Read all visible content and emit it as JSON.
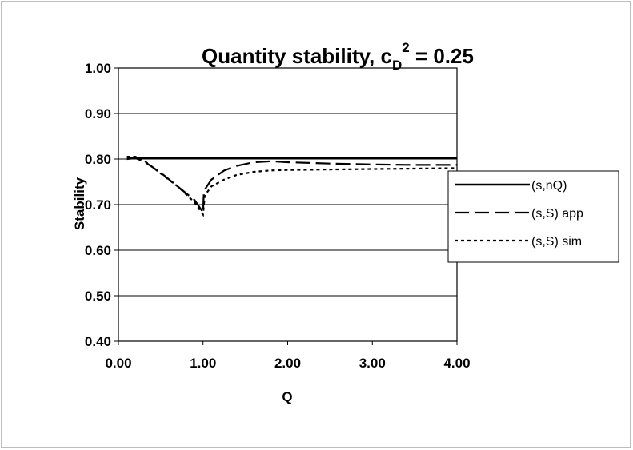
{
  "chart_data": {
    "type": "line",
    "title": "Quantity stability, c",
    "title_sub": "D",
    "title_sup": "2",
    "title_tail": " = 0.25",
    "xlabel": "Q",
    "ylabel": "Stability",
    "xlim": [
      0,
      4
    ],
    "ylim": [
      0.4,
      1.0
    ],
    "x_ticks": [
      "0.00",
      "1.00",
      "2.00",
      "3.00",
      "4.00"
    ],
    "y_ticks": [
      "0.40",
      "0.50",
      "0.60",
      "0.70",
      "0.80",
      "0.90",
      "1.00"
    ],
    "grid": "horizontal",
    "legend_position": "right",
    "series": [
      {
        "name": "(s,nQ)",
        "style": "solid",
        "color": "#000000",
        "x": [
          0.1,
          4.0
        ],
        "y": [
          0.802,
          0.802
        ]
      },
      {
        "name": "(s,S) app",
        "style": "dashed",
        "color": "#000000",
        "x": [
          0.1,
          0.2,
          0.3,
          0.5,
          0.7,
          0.9,
          1.0,
          1.01,
          1.1,
          1.25,
          1.4,
          1.6,
          1.8,
          2.0,
          2.5,
          3.0,
          3.5,
          4.0
        ],
        "y": [
          0.8,
          0.802,
          0.795,
          0.77,
          0.74,
          0.71,
          0.683,
          0.73,
          0.755,
          0.775,
          0.785,
          0.793,
          0.795,
          0.793,
          0.79,
          0.788,
          0.787,
          0.787
        ]
      },
      {
        "name": "(s,S) sim",
        "style": "dotted",
        "color": "#000000",
        "x": [
          0.1,
          0.2,
          0.3,
          0.5,
          0.7,
          0.9,
          1.0,
          1.02,
          1.1,
          1.25,
          1.4,
          1.6,
          1.8,
          2.0,
          2.5,
          3.0,
          3.5,
          4.0
        ],
        "y": [
          0.805,
          0.805,
          0.797,
          0.768,
          0.74,
          0.705,
          0.678,
          0.72,
          0.74,
          0.755,
          0.765,
          0.772,
          0.775,
          0.776,
          0.777,
          0.778,
          0.779,
          0.78
        ]
      }
    ]
  }
}
